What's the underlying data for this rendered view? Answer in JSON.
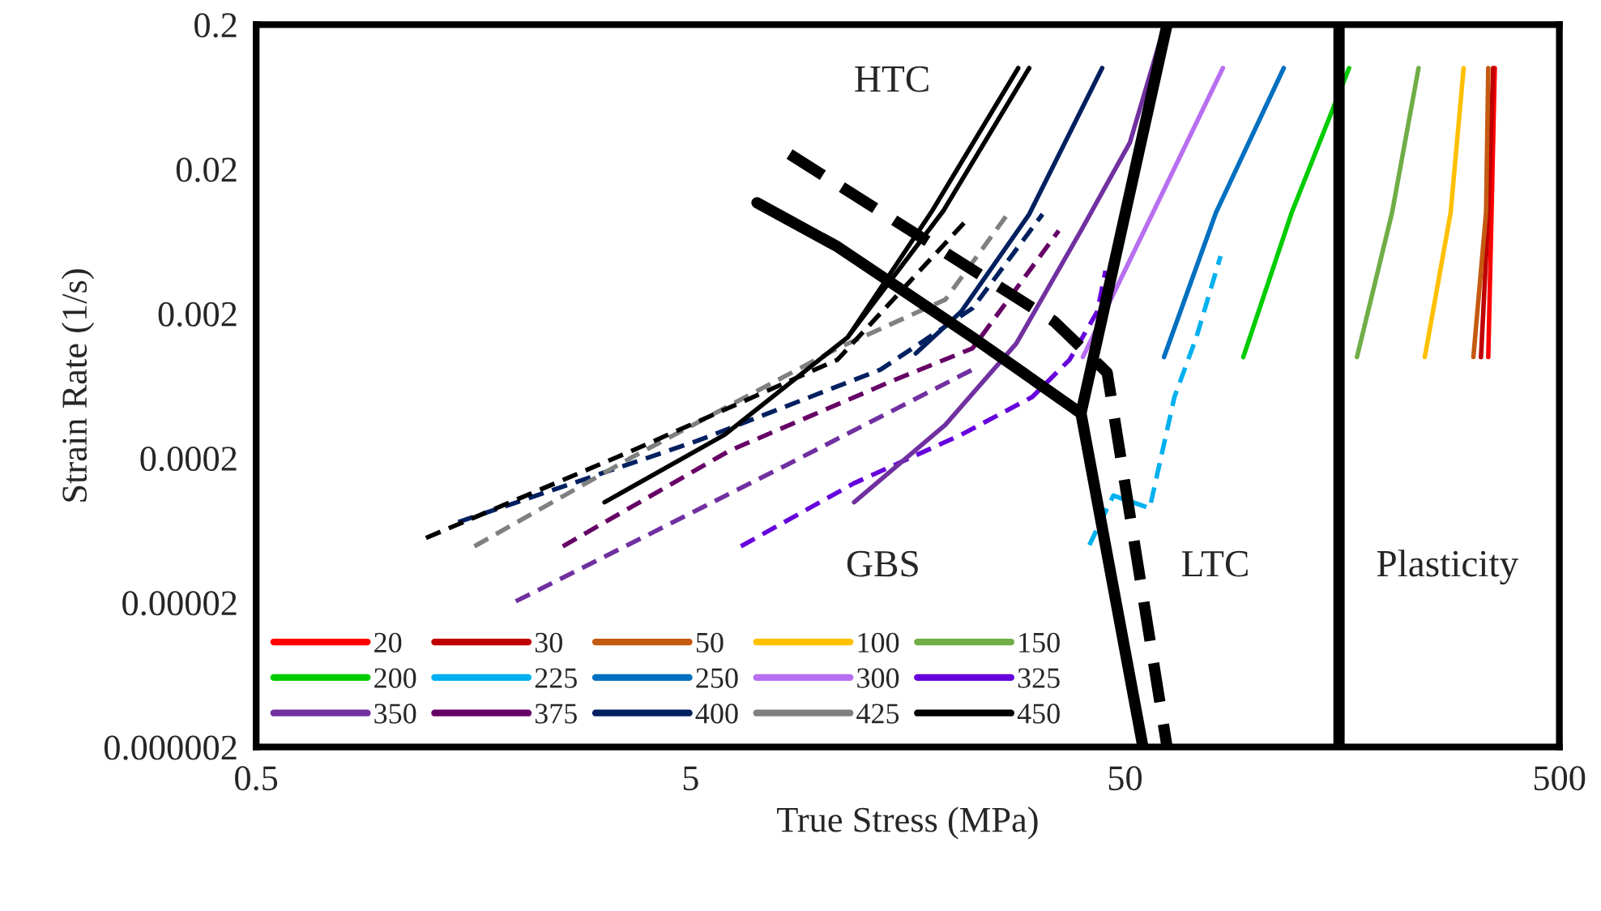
{
  "chart_data": {
    "type": "line",
    "xlabel": "True Stress (MPa)",
    "ylabel": "Strain Rate (1/s)",
    "log": "xy",
    "grid": false,
    "legend": "bottom left",
    "line_style": "solid",
    "marker": "none",
    "xlim": [
      0.5,
      500
    ],
    "xticks": [
      0.5,
      5,
      50,
      500
    ],
    "ylim": [
      2e-06,
      0.2
    ],
    "yticks": [
      {
        "value": 2e-06,
        "label": "0.000002"
      },
      {
        "value": 2e-05,
        "label": "0.00002"
      },
      {
        "value": 0.0002,
        "label": "0.0002"
      },
      {
        "value": 0.002,
        "label": "0.002"
      },
      {
        "value": 0.02,
        "label": "0.02"
      },
      {
        "value": 0.2,
        "label": "0.2"
      }
    ],
    "series": [
      {
        "name": "20",
        "color": "#ff0000",
        "x": [
          343,
          349,
          355
        ],
        "values": [
          0.001,
          0.01,
          0.1
        ]
      },
      {
        "name": "30",
        "color": "#c00000",
        "x": [
          330,
          343,
          352
        ],
        "values": [
          0.001,
          0.01,
          0.1
        ]
      },
      {
        "name": "50",
        "color": "#c55a11",
        "x": [
          317,
          339,
          343
        ],
        "values": [
          0.001,
          0.01,
          0.1
        ]
      },
      {
        "name": "100",
        "color": "#ffc000",
        "x": [
          245,
          281,
          301
        ],
        "values": [
          0.001,
          0.01,
          0.1
        ]
      },
      {
        "name": "150",
        "color": "#70ad47",
        "x": [
          171,
          206,
          237
        ],
        "values": [
          0.001,
          0.01,
          0.1
        ]
      },
      {
        "name": "200",
        "color": "#00cc00",
        "x": [
          93.6,
          121,
          164
        ],
        "values": [
          0.001,
          0.01,
          0.1
        ]
      },
      {
        "name": "225",
        "color": "#00b0f0",
        "line_style": "dashed",
        "x": [
          41.4,
          47,
          57,
          65,
          73,
          83
        ],
        "values": [
          5e-05,
          0.00011,
          9e-05,
          0.00053,
          0.00137,
          0.005
        ]
      },
      {
        "name": "250",
        "color": "#0070c0",
        "x": [
          61.5,
          81,
          116
        ],
        "values": [
          0.001,
          0.01,
          0.1
        ]
      },
      {
        "name": "300",
        "color": "#b86ef0",
        "x": [
          40,
          58,
          84
        ],
        "values": [
          0.001,
          0.01,
          0.1
        ]
      },
      {
        "name": "325",
        "color": "#6600dd",
        "line_style": "dashed",
        "x": [
          6.53,
          11.9,
          21,
          30.6,
          37.3,
          43.2,
          45.1
        ],
        "values": [
          4.9e-05,
          0.000134,
          0.00029,
          0.00053,
          0.00096,
          0.00207,
          0.00396
        ]
      },
      {
        "name": "350",
        "color": "#7030a0",
        "x": [
          11.9,
          19.3,
          28.1,
          39.6,
          51.3,
          61
        ],
        "values": [
          9.9e-05,
          0.00034,
          0.00124,
          0.0075,
          0.0304,
          0.176
        ]
      },
      {
        "color": "#7030a0",
        "line_style": "dashed",
        "x": [
          1.98,
          4.0,
          8.16,
          14.9,
          22.3
        ],
        "values": [
          2.04e-05,
          5.9e-05,
          0.000174,
          0.00044,
          0.00082
        ]
      },
      {
        "name": "375",
        "color": "#660066",
        "line_style": "dashed",
        "x": [
          2.54,
          6.15,
          14.5,
          22.3,
          35.2
        ],
        "values": [
          4.9e-05,
          0.000225,
          0.00068,
          0.00115,
          0.0075
        ]
      },
      {
        "name": "400",
        "color": "#002060",
        "x": [
          16.5,
          21,
          30.1,
          44.3
        ],
        "values": [
          0.00106,
          0.00207,
          0.00975,
          0.1
        ]
      },
      {
        "color": "#002060",
        "line_style": "dashed",
        "x": [
          1.46,
          5.18,
          13.7,
          22.3,
          32.3
        ],
        "values": [
          7.2e-05,
          0.000263,
          0.00082,
          0.00218,
          0.00975
        ]
      },
      {
        "name": "425",
        "color": "#808080",
        "line_style": "dashed",
        "x": [
          1.59,
          3.67,
          10.9,
          19.3,
          27.2
        ],
        "values": [
          4.9e-05,
          0.000203,
          0.00115,
          0.0025,
          0.0103
        ]
      },
      {
        "color": "#000000",
        "x": [
          11.5,
          19.1,
          30.1
        ],
        "values": [
          0.00137,
          0.0103,
          0.1
        ]
      },
      {
        "color": "#000000",
        "line_style": "dashed",
        "x": [
          1.23,
          3.67,
          10.9,
          21.7
        ],
        "values": [
          5.6e-05,
          0.000225,
          0.00096,
          0.009
        ]
      },
      {
        "name": "450",
        "color": "#000000",
        "x": [
          3.17,
          5.99,
          11.5,
          18.0,
          28.4
        ],
        "values": [
          9.9e-05,
          0.00029,
          0.00137,
          0.0103,
          0.1
        ]
      },
      {
        "color": "#000000",
        "x": [
          7.11,
          10.9,
          22.3,
          39.6
        ],
        "values": [
          0.0117,
          0.0058,
          0.00137,
          0.000408
        ]
      },
      {
        "color": "#000000",
        "x": [
          55,
          39.6,
          62.5
        ],
        "values": [
          2e-06,
          0.000408,
          0.2
        ]
      },
      {
        "color": "#000000",
        "line_style": "dashed",
        "x": [
          8.45,
          34.3,
          45.5,
          62.5
        ],
        "values": [
          0.0254,
          0.00177,
          0.00078,
          2e-06
        ]
      }
    ],
    "ref_lines": [
      {
        "axis": "x",
        "value": 155.5,
        "color": "#000000"
      }
    ],
    "annotations": [
      "HTC",
      "GBS",
      "LTC",
      "Plasticity"
    ]
  }
}
